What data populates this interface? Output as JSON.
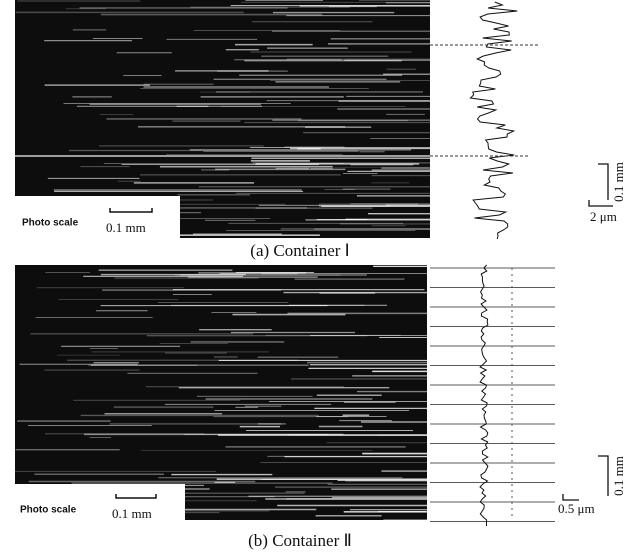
{
  "panels": [
    {
      "photo_scale_label": "Photo scale",
      "photo_scale_value": "0.1 mm",
      "vertical_scale": "0.1 mm",
      "horizontal_scale": "2 μm",
      "caption": "(a) Container Ⅰ"
    },
    {
      "photo_scale_label": "Photo scale",
      "photo_scale_value": "0.1 mm",
      "vertical_scale": "0.1 mm",
      "horizontal_scale": "0.5 μm",
      "caption": "(b) Container Ⅱ"
    }
  ]
}
